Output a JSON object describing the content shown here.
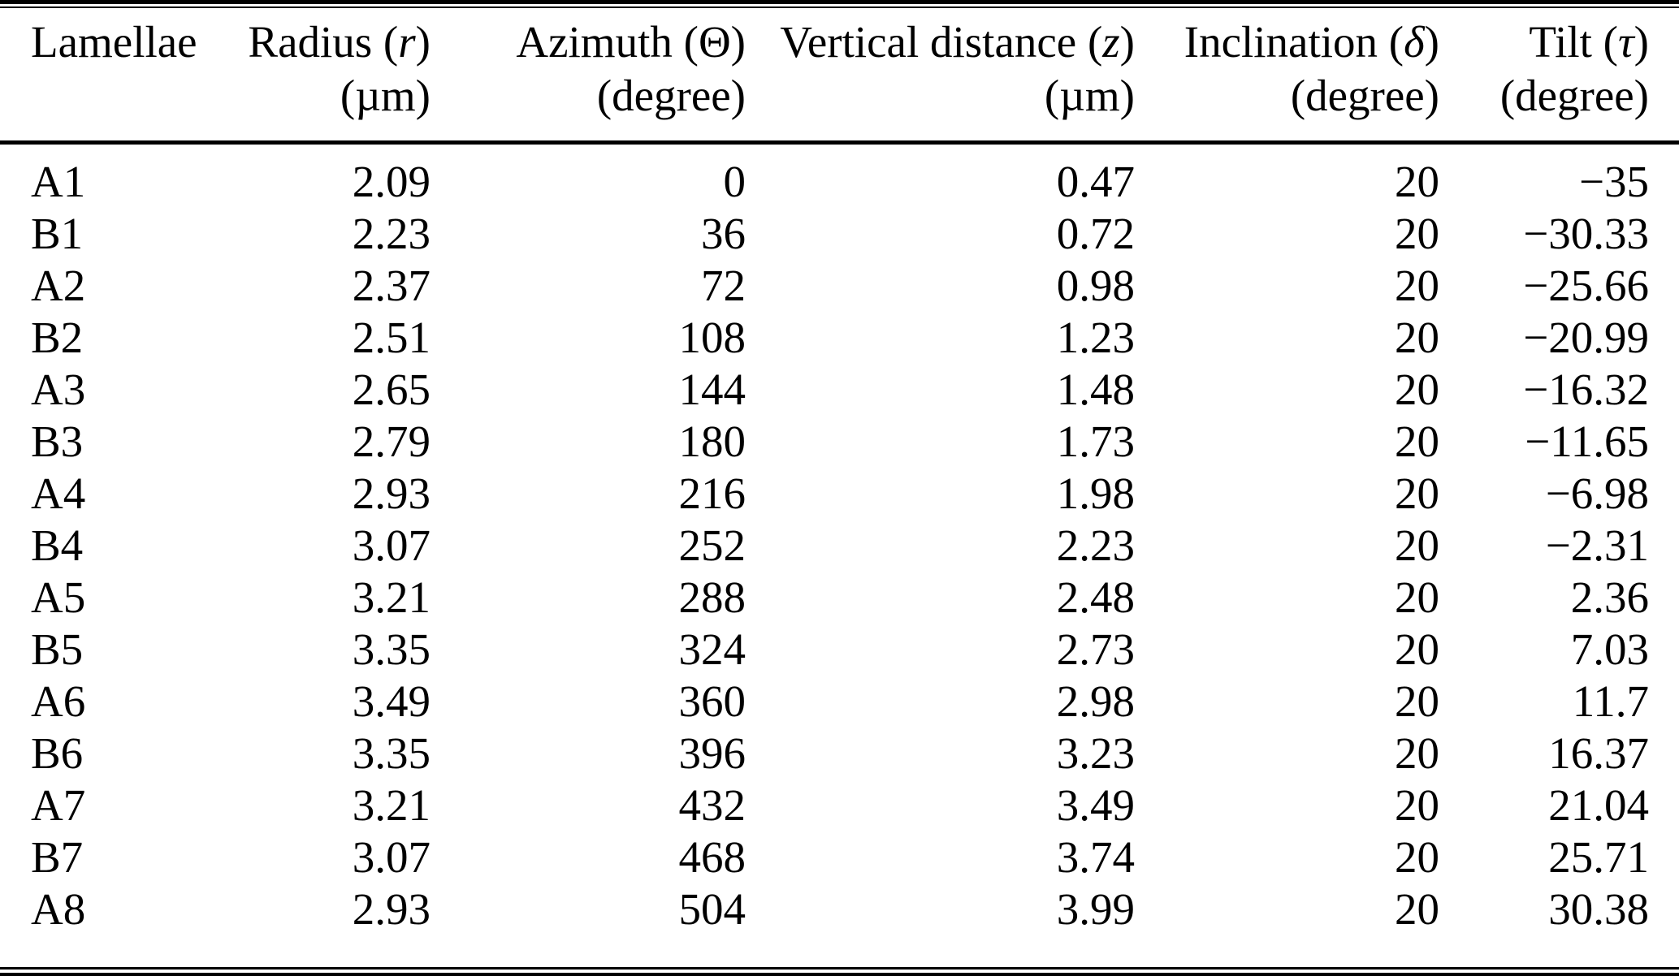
{
  "table": {
    "title": "Lamellae geometric parameters table",
    "columns": [
      {
        "key": "lamellae",
        "pre": "Lamellae",
        "sym": "",
        "post": "",
        "unit": ""
      },
      {
        "key": "radius",
        "pre": "Radius (",
        "sym": "r",
        "post": ")",
        "unit": "(µm)"
      },
      {
        "key": "azimuth",
        "pre": "Azimuth (",
        "sym": "Θ",
        "post": ")",
        "unit": "(degree)"
      },
      {
        "key": "vertical-distance",
        "pre": "Vertical distance (",
        "sym": "z",
        "post": ")",
        "unit": "(µm)"
      },
      {
        "key": "inclination",
        "pre": "Inclination (",
        "sym": "δ",
        "post": ")",
        "unit": "(degree)"
      },
      {
        "key": "tilt",
        "pre": "Tilt (",
        "sym": "τ",
        "post": ")",
        "unit": "(degree)"
      }
    ],
    "rows": [
      [
        "A1",
        "2.09",
        "0",
        "0.47",
        "20",
        "−35"
      ],
      [
        "B1",
        "2.23",
        "36",
        "0.72",
        "20",
        "−30.33"
      ],
      [
        "A2",
        "2.37",
        "72",
        "0.98",
        "20",
        "−25.66"
      ],
      [
        "B2",
        "2.51",
        "108",
        "1.23",
        "20",
        "−20.99"
      ],
      [
        "A3",
        "2.65",
        "144",
        "1.48",
        "20",
        "−16.32"
      ],
      [
        "B3",
        "2.79",
        "180",
        "1.73",
        "20",
        "−11.65"
      ],
      [
        "A4",
        "2.93",
        "216",
        "1.98",
        "20",
        "−6.98"
      ],
      [
        "B4",
        "3.07",
        "252",
        "2.23",
        "20",
        "−2.31"
      ],
      [
        "A5",
        "3.21",
        "288",
        "2.48",
        "20",
        "2.36"
      ],
      [
        "B5",
        "3.35",
        "324",
        "2.73",
        "20",
        "7.03"
      ],
      [
        "A6",
        "3.49",
        "360",
        "2.98",
        "20",
        "11.7"
      ],
      [
        "B6",
        "3.35",
        "396",
        "3.23",
        "20",
        "16.37"
      ],
      [
        "A7",
        "3.21",
        "432",
        "3.49",
        "20",
        "21.04"
      ],
      [
        "B7",
        "3.07",
        "468",
        "3.74",
        "20",
        "25.71"
      ],
      [
        "A8",
        "2.93",
        "504",
        "3.99",
        "20",
        "30.38"
      ]
    ],
    "colors": {
      "text": "#000000",
      "background": "#ffffff",
      "rule": "#000000"
    }
  }
}
